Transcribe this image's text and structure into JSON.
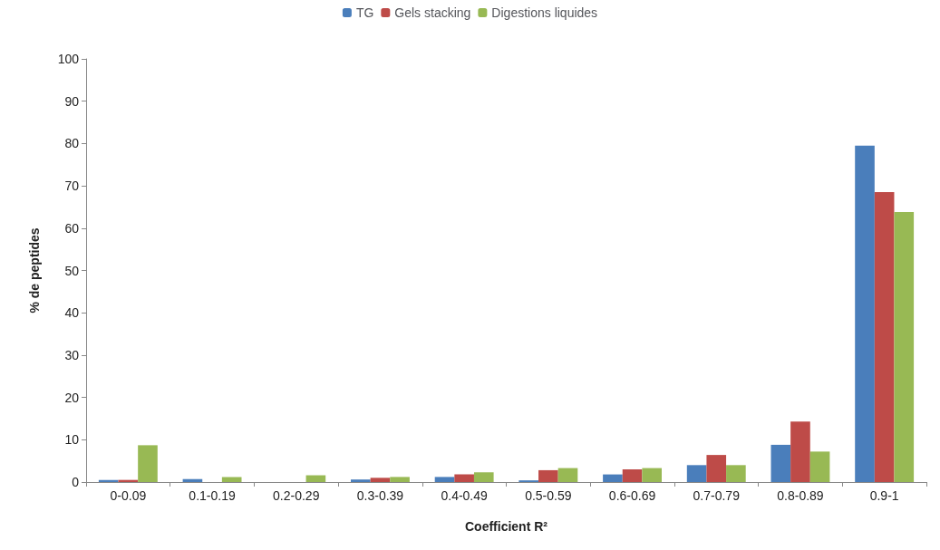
{
  "chart_data": {
    "type": "bar",
    "xlabel": "Coefficient R²",
    "ylabel": "% de peptides",
    "categories": [
      "0-0.09",
      "0.1-0.19",
      "0.2-0.29",
      "0.3-0.39",
      "0.4-0.49",
      "0.5-0.59",
      "0.6-0.69",
      "0.7-0.79",
      "0.8-0.89",
      "0.9-1"
    ],
    "series": [
      {
        "name": "TG",
        "color": "#4a7ebb",
        "values": [
          0.5,
          0.7,
          0,
          0.6,
          1.2,
          0.4,
          1.8,
          4.0,
          8.8,
          79.5
        ]
      },
      {
        "name": "Gels stacking",
        "color": "#be4b48",
        "values": [
          0.5,
          0,
          0,
          1.0,
          1.8,
          2.8,
          3.0,
          6.4,
          14.3,
          68.5
        ]
      },
      {
        "name": "Digestions liquides",
        "color": "#98b954",
        "values": [
          8.7,
          1.2,
          1.6,
          1.2,
          2.3,
          3.3,
          3.3,
          4.0,
          7.2,
          63.8
        ]
      }
    ],
    "ylim": [
      0,
      100
    ],
    "yticks": [
      0,
      10,
      20,
      30,
      40,
      50,
      60,
      70,
      80,
      90,
      100
    ],
    "grid": false,
    "legend": "top"
  }
}
